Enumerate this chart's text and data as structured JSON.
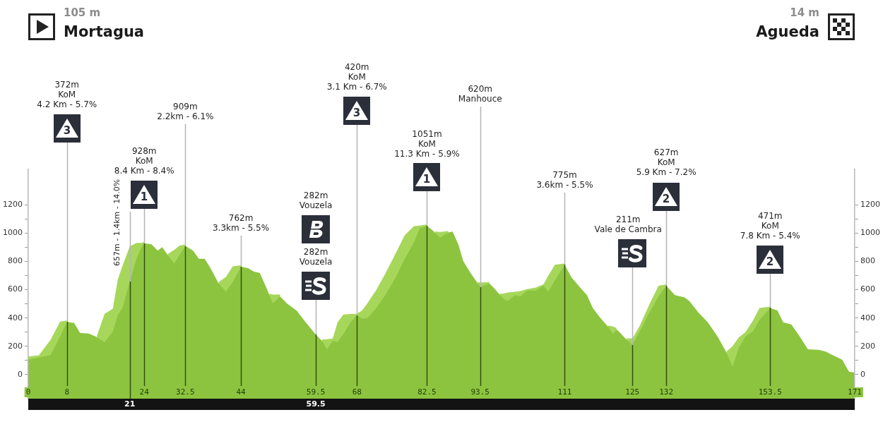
{
  "chart_data": {
    "type": "area",
    "annotations": [
      "105 m",
      "Mortagua",
      "14 m",
      "Agueda",
      "3",
      "1",
      "282m\nVouzela",
      "3",
      "1",
      "2",
      "2"
    ],
    "ref_lines": [
      {
        "axis": "x",
        "value": 8,
        "label": "372m\nKoM\n4.2 Km - 5.7%"
      },
      {
        "axis": "x",
        "value": 21,
        "label": "657m - 1.4km - 14.0%"
      },
      {
        "axis": "x",
        "value": 24,
        "label": "928m\nKoM\n8.4 Km - 8.4%"
      },
      {
        "axis": "x",
        "value": 32.5,
        "label": "909m\n2.2km - 6.1%"
      },
      {
        "axis": "x",
        "value": 44,
        "label": "762m\n3.3km - 5.5%"
      },
      {
        "axis": "x",
        "value": 59.5,
        "label": "282m\nVouzela"
      },
      {
        "axis": "x",
        "value": 68,
        "label": "420m\nKoM\n3.1 Km - 6.7%"
      },
      {
        "axis": "x",
        "value": 82.5,
        "label": "1051m\nKoM\n11.3 Km - 5.9%"
      },
      {
        "axis": "x",
        "value": 93.5,
        "label": "620m\nManhouce"
      },
      {
        "axis": "x",
        "value": 111,
        "label": "775m\n3.6km - 5.5%"
      },
      {
        "axis": "x",
        "value": 125,
        "label": "211m\nVale de Cambra"
      },
      {
        "axis": "x",
        "value": 132,
        "label": "627m\nKoM\n5.9 Km - 7.2%"
      },
      {
        "axis": "x",
        "value": 153.5,
        "label": "471m\nKoM\n7.8 Km - 5.4%"
      }
    ],
    "bands": [
      {
        "axis": "y",
        "from": -170,
        "to": 0,
        "color": "#8cc43f"
      }
    ],
    "x": [
      0,
      2.2,
      4.6,
      6.6,
      8,
      9.5,
      10.7,
      12.5,
      13.9,
      14.2,
      15.8,
      17.5,
      18.5,
      19.5,
      21,
      22.4,
      23.4,
      24,
      25.5,
      26.8,
      27.7,
      28.9,
      30.2,
      31.3,
      32.5,
      34.1,
      35.3,
      36.5,
      37.7,
      39.4,
      40.9,
      42.3,
      44,
      45.5,
      46.7,
      47.9,
      49.2,
      49.9,
      50.6,
      52.1,
      53.5,
      55.5,
      57.4,
      59.5,
      60.8,
      61.8,
      63,
      64,
      65.2,
      66.7,
      68,
      69.1,
      70.2,
      72,
      74,
      76,
      77.9,
      79.8,
      81,
      82.5,
      83.7,
      84.2,
      85.2,
      86.9,
      87.8,
      89,
      90,
      91.5,
      93,
      93.5,
      95.4,
      96.4,
      97.6,
      98.3,
      99.2,
      100.7,
      101.8,
      103.2,
      105,
      106.6,
      107.6,
      109,
      111,
      112.4,
      114.1,
      115.6,
      116.8,
      118.3,
      120,
      121,
      121.7,
      122.6,
      123.8,
      125,
      126.5,
      128.5,
      130.4,
      132,
      133.8,
      135.8,
      136.8,
      138.7,
      140.6,
      142.6,
      144.5,
      145.7,
      147,
      148.4,
      149.9,
      151.3,
      153.5,
      155,
      156.2,
      157.9,
      159.6,
      161.3,
      163.5,
      165,
      166.4,
      168.4,
      169.8,
      171
    ],
    "series": [
      {
        "color": "#a6d75b",
        "values": [
          128,
          136,
          245,
          375,
          382,
          null,
          null,
          null,
          null,
          274,
          430,
          465,
          669,
          768,
          905,
          930,
          930,
          938,
          null,
          null,
          null,
          853,
          880,
          912,
          919,
          null,
          null,
          null,
          null,
          654,
          690,
          765,
          772,
          null,
          null,
          null,
          null,
          571,
          565,
          566,
          null,
          null,
          null,
          null,
          247,
          250,
          255,
          370,
          425,
          428,
          430,
          454,
          505,
          598,
          721,
          855,
          985,
          1049,
          1052,
          1061,
          null,
          1011,
          1008,
          1014,
          null,
          null,
          null,
          null,
          655,
          650,
          654,
          null,
          573,
          572,
          580,
          585,
          590,
          604,
          615,
          637,
          700,
          777,
          785,
          null,
          null,
          null,
          null,
          null,
          347,
          340,
          330,
          null,
          256,
          255,
          344,
          495,
          627,
          637,
          null,
          null,
          null,
          null,
          null,
          null,
          164,
          200,
          262,
          300,
          380,
          470,
          481,
          null,
          null,
          null,
          null,
          null,
          null,
          null,
          null,
          null,
          null,
          null
        ]
      },
      {
        "color": "#8cc43f",
        "values": [
          105,
          121,
          138,
          270,
          372,
          365,
          295,
          290,
          270,
          264,
          229,
          304,
          420,
          470,
          657,
          818,
          896,
          928,
          920,
          876,
          900,
          843,
          785,
          844,
          909,
          876,
          818,
          818,
          752,
          644,
          586,
          652,
          762,
          752,
          727,
          719,
          619,
          561,
          503,
          553,
          503,
          453,
          370,
          282,
          237,
          179,
          237,
          230,
          287,
          370,
          420,
          395,
          400,
          470,
          569,
          686,
          818,
          935,
          1034,
          1051,
          1017,
          1001,
          968,
          1004,
          1010,
          918,
          802,
          719,
          645,
          620,
          644,
          610,
          563,
          536,
          520,
          561,
          553,
          594,
          594,
          627,
          586,
          669,
          775,
          686,
          619,
          561,
          470,
          403,
          337,
          287,
          320,
          290,
          246,
          211,
          304,
          437,
          553,
          627,
          561,
          545,
          519,
          437,
          370,
          270,
          154,
          55,
          188,
          270,
          304,
          387,
          471,
          453,
          370,
          354,
          270,
          179,
          175,
          163,
          138,
          105,
          21,
          14
        ]
      }
    ],
    "xlim": [
      0,
      171
    ],
    "xticks": [
      0,
      8,
      24,
      32.5,
      44,
      59.5,
      68,
      82.5,
      93.5,
      111,
      125,
      132,
      153.5,
      171
    ],
    "x2lim": [
      0,
      171
    ],
    "x2ticks": [
      21,
      59.5
    ],
    "ylim": [
      -170,
      1450
    ],
    "yticks": [
      {
        "value": -100,
        "label": null
      },
      0,
      {
        "value": 100,
        "label": null
      },
      200,
      {
        "value": 300,
        "label": null
      },
      400,
      {
        "value": 500,
        "label": null
      },
      600,
      {
        "value": 700,
        "label": null
      },
      800,
      {
        "value": 900,
        "label": null
      },
      1000,
      {
        "value": 1100,
        "label": null
      },
      1200
    ],
    "y2lim": [
      -170,
      1450
    ],
    "y2ticks": [
      {
        "value": -100,
        "label": null
      },
      0,
      {
        "value": 100,
        "label": null
      },
      200,
      {
        "value": 300,
        "label": null
      },
      400,
      {
        "value": 500,
        "label": null
      },
      600,
      {
        "value": 700,
        "label": null
      },
      800,
      {
        "value": 900,
        "label": null
      },
      1000,
      {
        "value": 1100,
        "label": null
      },
      1200
    ]
  }
}
